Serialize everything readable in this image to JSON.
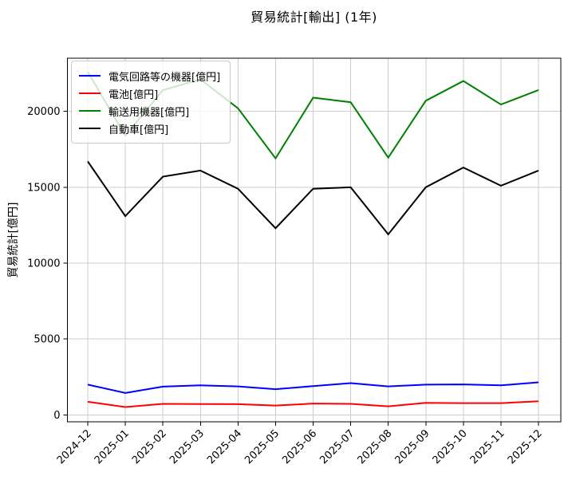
{
  "chart_data": {
    "type": "line",
    "title": "貿易統計[輸出] (1年)",
    "xlabel": "",
    "ylabel": "貿易統計[億円]",
    "x_labels": [
      "2024-12",
      "2025-01",
      "2025-02",
      "2025-03",
      "2025-04",
      "2025-05",
      "2025-06",
      "2025-07",
      "2025-08",
      "2025-09",
      "2025-10",
      "2025-11",
      "2025-12"
    ],
    "y_ticks": [
      0,
      5000,
      10000,
      15000,
      20000
    ],
    "ylim": [
      -450,
      23500
    ],
    "grid": true,
    "legend_position": "upper left",
    "series": [
      {
        "name": "電気回路等の機器[億円]",
        "color": "#0000ff",
        "values": [
          2000,
          1450,
          1870,
          1950,
          1880,
          1700,
          1900,
          2100,
          1880,
          2000,
          2010,
          1950,
          2150
        ]
      },
      {
        "name": "電池[億円]",
        "color": "#ff0000",
        "values": [
          870,
          520,
          730,
          720,
          710,
          620,
          750,
          730,
          570,
          800,
          780,
          780,
          900
        ]
      },
      {
        "name": "輸送用機器[億円]",
        "color": "#008000",
        "values": [
          22600,
          18400,
          21400,
          22100,
          20200,
          16900,
          20900,
          20600,
          16950,
          20700,
          22000,
          20450,
          21400
        ]
      },
      {
        "name": "自動車[億円]",
        "color": "#000000",
        "values": [
          16700,
          13100,
          15700,
          16100,
          14900,
          12300,
          14900,
          15000,
          11900,
          15000,
          16300,
          15100,
          16100
        ]
      }
    ],
    "colors": {
      "grid": "#cccccc",
      "spine": "#000000",
      "background": "#ffffff"
    }
  }
}
